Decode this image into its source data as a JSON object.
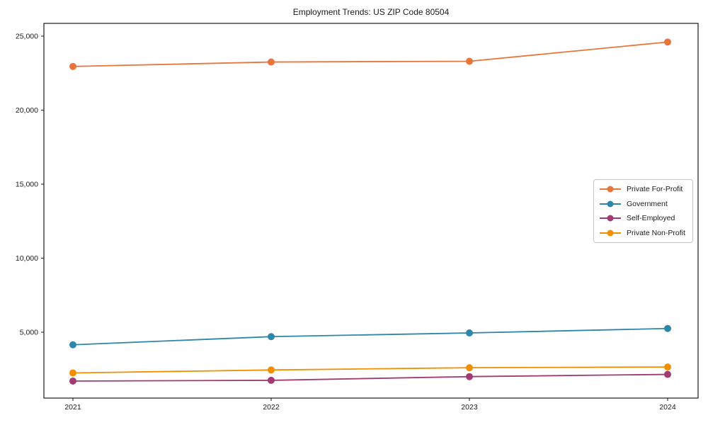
{
  "colors": {
    "axis": "#1a1a1a",
    "background": "#ffffff",
    "legend_border": "#c4c4c4"
  },
  "chart_data": {
    "type": "line",
    "title": "Employment Trends: US ZIP Code 80504",
    "xlabel": "",
    "ylabel": "",
    "x": [
      2021,
      2022,
      2023,
      2024
    ],
    "x_tick_labels": [
      "2021",
      "2022",
      "2023",
      "2024"
    ],
    "y_ticks": [
      5000,
      10000,
      15000,
      20000,
      25000
    ],
    "y_tick_labels": [
      "5,000",
      "10,000",
      "15,000",
      "20,000",
      "25,000"
    ],
    "ylim": [
      550,
      25860
    ],
    "grid": false,
    "marker": "o",
    "legend_position": "center right",
    "series": [
      {
        "name": "Private For-Profit",
        "color": "#E8763B",
        "values": [
          22950,
          23250,
          23300,
          24600
        ]
      },
      {
        "name": "Government",
        "color": "#2E86AB",
        "values": [
          4150,
          4700,
          4950,
          5250
        ]
      },
      {
        "name": "Self-Employed",
        "color": "#A23B72",
        "values": [
          1700,
          1750,
          2000,
          2150
        ]
      },
      {
        "name": "Private Non-Profit",
        "color": "#F18F01",
        "values": [
          2250,
          2450,
          2600,
          2650
        ]
      }
    ]
  }
}
